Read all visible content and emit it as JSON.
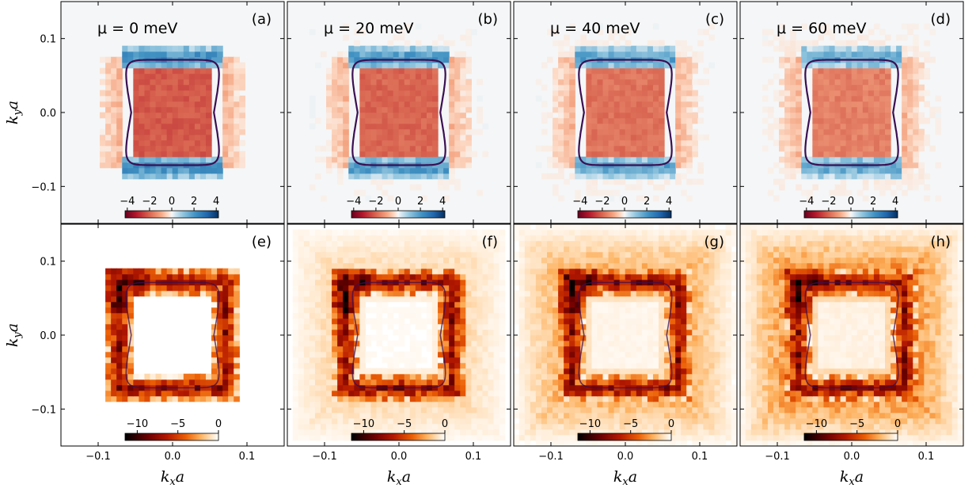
{
  "chart_data": {
    "type": "heatmap",
    "layout": "2x4 grid of panels",
    "xlabel": "k_x a",
    "ylabel": "k_y a",
    "xlim": [
      -0.15,
      0.15
    ],
    "ylim": [
      -0.15,
      0.15
    ],
    "xticks": [
      -0.1,
      0.0,
      0.1
    ],
    "yticks": [
      -0.1,
      0.0,
      0.1
    ],
    "xtick_labels": [
      "−0.1",
      "0.0",
      "0.1"
    ],
    "ytick_labels": [
      "−0.1",
      "0.0",
      "0.1"
    ],
    "fermi_surface": {
      "contour": "rounded square with concave sides",
      "half_width": 0.075,
      "color": "#3b0f52"
    },
    "rows": [
      {
        "colormap": "RdBu",
        "colorbar_ticks": [
          -4,
          -2,
          0,
          2,
          4
        ],
        "colorbar_labels": [
          "−4",
          "−2",
          "0",
          "2",
          "4"
        ],
        "colorbar_range": [
          -4.2,
          4.2
        ],
        "panels": [
          {
            "label": "(a)",
            "mu_label": "μ = 0 meV",
            "mu": 0,
            "inner_value": -2.2,
            "edge_value": 2.6,
            "diffuse_level": 0.0
          },
          {
            "label": "(b)",
            "mu_label": "μ = 20 meV",
            "mu": 20,
            "inner_value": -2.0,
            "edge_value": 2.3,
            "diffuse_level": 0.15
          },
          {
            "label": "(c)",
            "mu_label": "μ = 40 meV",
            "mu": 40,
            "inner_value": -1.8,
            "edge_value": 2.0,
            "diffuse_level": 0.3
          },
          {
            "label": "(d)",
            "mu_label": "μ = 60 meV",
            "mu": 60,
            "inner_value": -1.6,
            "edge_value": 1.9,
            "diffuse_level": 0.45
          }
        ]
      },
      {
        "colormap": "gist_heat",
        "colorbar_ticks": [
          -10,
          -5,
          0
        ],
        "colorbar_labels": [
          "−10",
          "−5",
          "0"
        ],
        "colorbar_range": [
          -11.5,
          0
        ],
        "panels": [
          {
            "label": "(e)",
            "mu": 0,
            "ring_value": -7.5,
            "diffuse_level": 0.0
          },
          {
            "label": "(f)",
            "mu": 20,
            "ring_value": -7.5,
            "diffuse_level": 0.4
          },
          {
            "label": "(g)",
            "mu": 40,
            "ring_value": -7.5,
            "diffuse_level": 0.75
          },
          {
            "label": "(h)",
            "mu": 60,
            "ring_value": -7.5,
            "diffuse_level": 1.0
          }
        ]
      }
    ],
    "grid": false
  }
}
